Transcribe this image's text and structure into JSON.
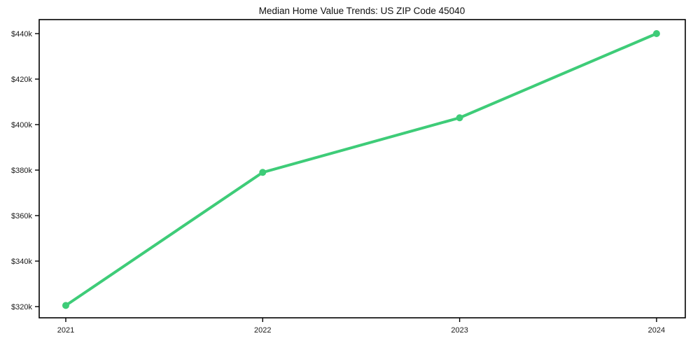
{
  "chart_data": {
    "type": "line",
    "title": "Median Home Value Trends: US ZIP Code 45040",
    "x": [
      2021,
      2022,
      2023,
      2024
    ],
    "x_labels": [
      "2021",
      "2022",
      "2023",
      "2024"
    ],
    "series": [
      {
        "name": "Median Home Value",
        "values": [
          320500,
          379000,
          403000,
          440000
        ],
        "color": "#3ecc78"
      }
    ],
    "y_ticks": [
      {
        "value": 320000,
        "label": "$320k"
      },
      {
        "value": 340000,
        "label": "$340k"
      },
      {
        "value": 360000,
        "label": "$360k"
      },
      {
        "value": 380000,
        "label": "$380k"
      },
      {
        "value": 400000,
        "label": "$400k"
      },
      {
        "value": 420000,
        "label": "$420k"
      },
      {
        "value": 440000,
        "label": "$440k"
      }
    ],
    "xlabel": "",
    "ylabel": "",
    "xlim": [
      2020.865,
      2024.146
    ],
    "ylim": [
      315077,
      446154
    ],
    "grid": false,
    "legend": "none",
    "marker": "circle",
    "line_width": 4,
    "marker_radius": 5,
    "colors": {
      "line": "#3ecc78",
      "text": "#1a1a1a",
      "axis": "#000000",
      "background": "#ffffff"
    }
  }
}
